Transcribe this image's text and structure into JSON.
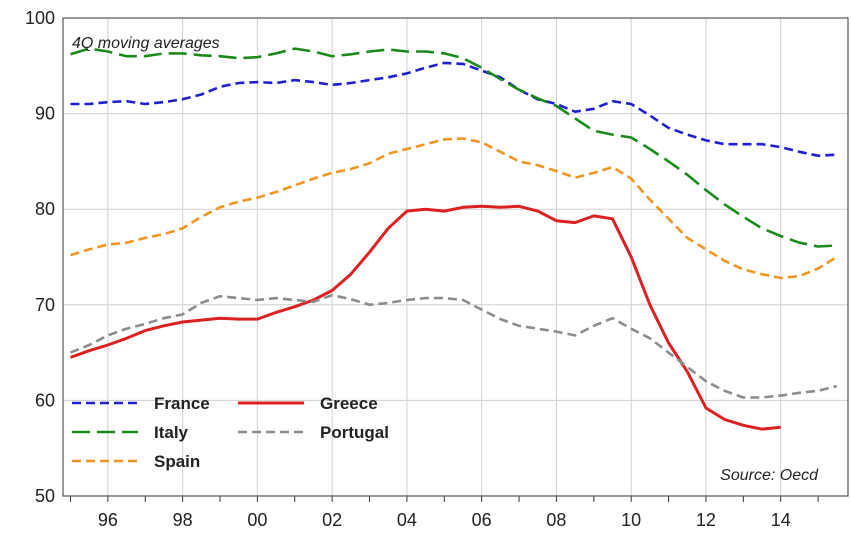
{
  "chart_data": {
    "type": "line",
    "title": "",
    "xlabel": "",
    "ylabel": "",
    "annotation_top": "4Q moving averages",
    "annotation_bottom": "Source: Oecd",
    "ylim": [
      50,
      100
    ],
    "xlim": [
      1994.8,
      2015.8
    ],
    "y_ticks": [
      50,
      60,
      70,
      80,
      90,
      100
    ],
    "x_tick_positions": [
      1996,
      1998,
      2000,
      2002,
      2004,
      2006,
      2008,
      2010,
      2012,
      2014
    ],
    "x_tick_labels": [
      "96",
      "98",
      "00",
      "02",
      "04",
      "06",
      "08",
      "10",
      "12",
      "14"
    ],
    "grid": true,
    "legend_position": "bottom-left",
    "series": [
      {
        "name": "France",
        "color": "#2020d0",
        "dash": "dashed",
        "x": [
          1995.0,
          1995.5,
          1996.0,
          1996.5,
          1997.0,
          1997.5,
          1998.0,
          1998.5,
          1999.0,
          1999.5,
          2000.0,
          2000.5,
          2001.0,
          2001.5,
          2002.0,
          2002.5,
          2003.0,
          2003.5,
          2004.0,
          2004.5,
          2005.0,
          2005.5,
          2006.0,
          2006.5,
          2007.0,
          2007.5,
          2008.0,
          2008.5,
          2009.0,
          2009.5,
          2010.0,
          2010.5,
          2011.0,
          2011.5,
          2012.0,
          2012.5,
          2013.0,
          2013.5,
          2014.0,
          2014.5,
          2015.0,
          2015.5
        ],
        "values": [
          91.0,
          91.0,
          91.2,
          91.3,
          91.0,
          91.2,
          91.5,
          92.0,
          92.8,
          93.2,
          93.3,
          93.2,
          93.5,
          93.3,
          93.0,
          93.2,
          93.5,
          93.8,
          94.2,
          94.8,
          95.3,
          95.2,
          94.5,
          93.8,
          92.5,
          91.5,
          91.0,
          90.2,
          90.5,
          91.3,
          91.0,
          89.8,
          88.5,
          87.8,
          87.2,
          86.8,
          86.8,
          86.8,
          86.5,
          86.0,
          85.6,
          85.7
        ]
      },
      {
        "name": "Italy",
        "color": "#1a8a1a",
        "dash": "long-dashed",
        "x": [
          1995.0,
          1995.5,
          1996.0,
          1996.5,
          1997.0,
          1997.5,
          1998.0,
          1998.5,
          1999.0,
          1999.5,
          2000.0,
          2000.5,
          2001.0,
          2001.5,
          2002.0,
          2002.5,
          2003.0,
          2003.5,
          2004.0,
          2004.5,
          2005.0,
          2005.5,
          2006.0,
          2006.5,
          2007.0,
          2007.5,
          2008.0,
          2008.5,
          2009.0,
          2009.5,
          2010.0,
          2010.5,
          2011.0,
          2011.5,
          2012.0,
          2012.5,
          2013.0,
          2013.5,
          2014.0,
          2014.5,
          2015.0,
          2015.5
        ],
        "values": [
          96.2,
          96.8,
          96.5,
          96.0,
          96.0,
          96.3,
          96.3,
          96.1,
          96.0,
          95.8,
          95.9,
          96.3,
          96.8,
          96.5,
          96.0,
          96.2,
          96.5,
          96.7,
          96.5,
          96.5,
          96.3,
          95.8,
          94.8,
          93.6,
          92.5,
          91.6,
          90.8,
          89.5,
          88.2,
          87.8,
          87.5,
          86.3,
          85.0,
          83.6,
          82.0,
          80.5,
          79.2,
          78.0,
          77.2,
          76.5,
          76.1,
          76.2
        ]
      },
      {
        "name": "Spain",
        "color": "#f09520",
        "dash": "dashed",
        "x": [
          1995.0,
          1995.5,
          1996.0,
          1996.5,
          1997.0,
          1997.5,
          1998.0,
          1998.5,
          1999.0,
          1999.5,
          2000.0,
          2000.5,
          2001.0,
          2001.5,
          2002.0,
          2002.5,
          2003.0,
          2003.5,
          2004.0,
          2004.5,
          2005.0,
          2005.5,
          2006.0,
          2006.5,
          2007.0,
          2007.5,
          2008.0,
          2008.5,
          2009.0,
          2009.5,
          2010.0,
          2010.5,
          2011.0,
          2011.5,
          2012.0,
          2012.5,
          2013.0,
          2013.5,
          2014.0,
          2014.5,
          2015.0,
          2015.5
        ],
        "values": [
          75.2,
          75.8,
          76.3,
          76.5,
          77.0,
          77.4,
          78.0,
          79.2,
          80.2,
          80.8,
          81.2,
          81.8,
          82.5,
          83.2,
          83.8,
          84.2,
          84.8,
          85.8,
          86.3,
          86.8,
          87.3,
          87.4,
          87.0,
          86.0,
          85.0,
          84.6,
          84.0,
          83.3,
          83.8,
          84.4,
          83.2,
          81.0,
          79.0,
          77.0,
          75.8,
          74.6,
          73.7,
          73.2,
          72.8,
          73.0,
          73.8,
          75.0
        ]
      },
      {
        "name": "Greece",
        "color": "#dd2020",
        "dash": "solid",
        "x": [
          1995.0,
          1995.5,
          1996.0,
          1996.5,
          1997.0,
          1997.5,
          1998.0,
          1998.5,
          1999.0,
          1999.5,
          2000.0,
          2000.5,
          2001.0,
          2001.5,
          2002.0,
          2002.5,
          2003.0,
          2003.5,
          2004.0,
          2004.5,
          2005.0,
          2005.5,
          2006.0,
          2006.5,
          2007.0,
          2007.5,
          2008.0,
          2008.5,
          2009.0,
          2009.5,
          2010.0,
          2010.5,
          2011.0,
          2011.5,
          2012.0,
          2012.5,
          2013.0,
          2013.5,
          2014.0
        ],
        "values": [
          64.5,
          65.2,
          65.8,
          66.5,
          67.3,
          67.8,
          68.2,
          68.4,
          68.6,
          68.5,
          68.5,
          69.2,
          69.8,
          70.5,
          71.5,
          73.2,
          75.5,
          78.0,
          79.8,
          80.0,
          79.8,
          80.2,
          80.3,
          80.2,
          80.3,
          79.8,
          78.8,
          78.6,
          79.3,
          79.0,
          75.0,
          70.0,
          66.0,
          63.0,
          59.2,
          58.0,
          57.4,
          57.0,
          57.2
        ]
      },
      {
        "name": "Portugal",
        "color": "#8c8c8c",
        "dash": "dashed",
        "x": [
          1995.0,
          1995.5,
          1996.0,
          1996.5,
          1997.0,
          1997.5,
          1998.0,
          1998.5,
          1999.0,
          1999.5,
          2000.0,
          2000.5,
          2001.0,
          2001.5,
          2002.0,
          2002.5,
          2003.0,
          2003.5,
          2004.0,
          2004.5,
          2005.0,
          2005.5,
          2006.0,
          2006.5,
          2007.0,
          2007.5,
          2008.0,
          2008.5,
          2009.0,
          2009.5,
          2010.0,
          2010.5,
          2011.0,
          2011.5,
          2012.0,
          2012.5,
          2013.0,
          2013.5,
          2014.0,
          2014.5,
          2015.0,
          2015.5
        ],
        "values": [
          65.0,
          65.8,
          66.8,
          67.5,
          68.0,
          68.6,
          69.0,
          70.2,
          70.9,
          70.7,
          70.5,
          70.7,
          70.5,
          70.3,
          71.0,
          70.6,
          70.0,
          70.2,
          70.5,
          70.7,
          70.7,
          70.5,
          69.5,
          68.5,
          67.8,
          67.5,
          67.2,
          66.8,
          67.8,
          68.6,
          67.5,
          66.5,
          65.0,
          63.5,
          62.0,
          61.0,
          60.3,
          60.3,
          60.5,
          60.8,
          61.0,
          61.5
        ]
      }
    ],
    "legend_layout": [
      {
        "series": "France",
        "row": 0,
        "col": 0
      },
      {
        "series": "Italy",
        "row": 1,
        "col": 0
      },
      {
        "series": "Spain",
        "row": 2,
        "col": 0
      },
      {
        "series": "Greece",
        "row": 0,
        "col": 1
      },
      {
        "series": "Portugal",
        "row": 1,
        "col": 1
      }
    ]
  }
}
